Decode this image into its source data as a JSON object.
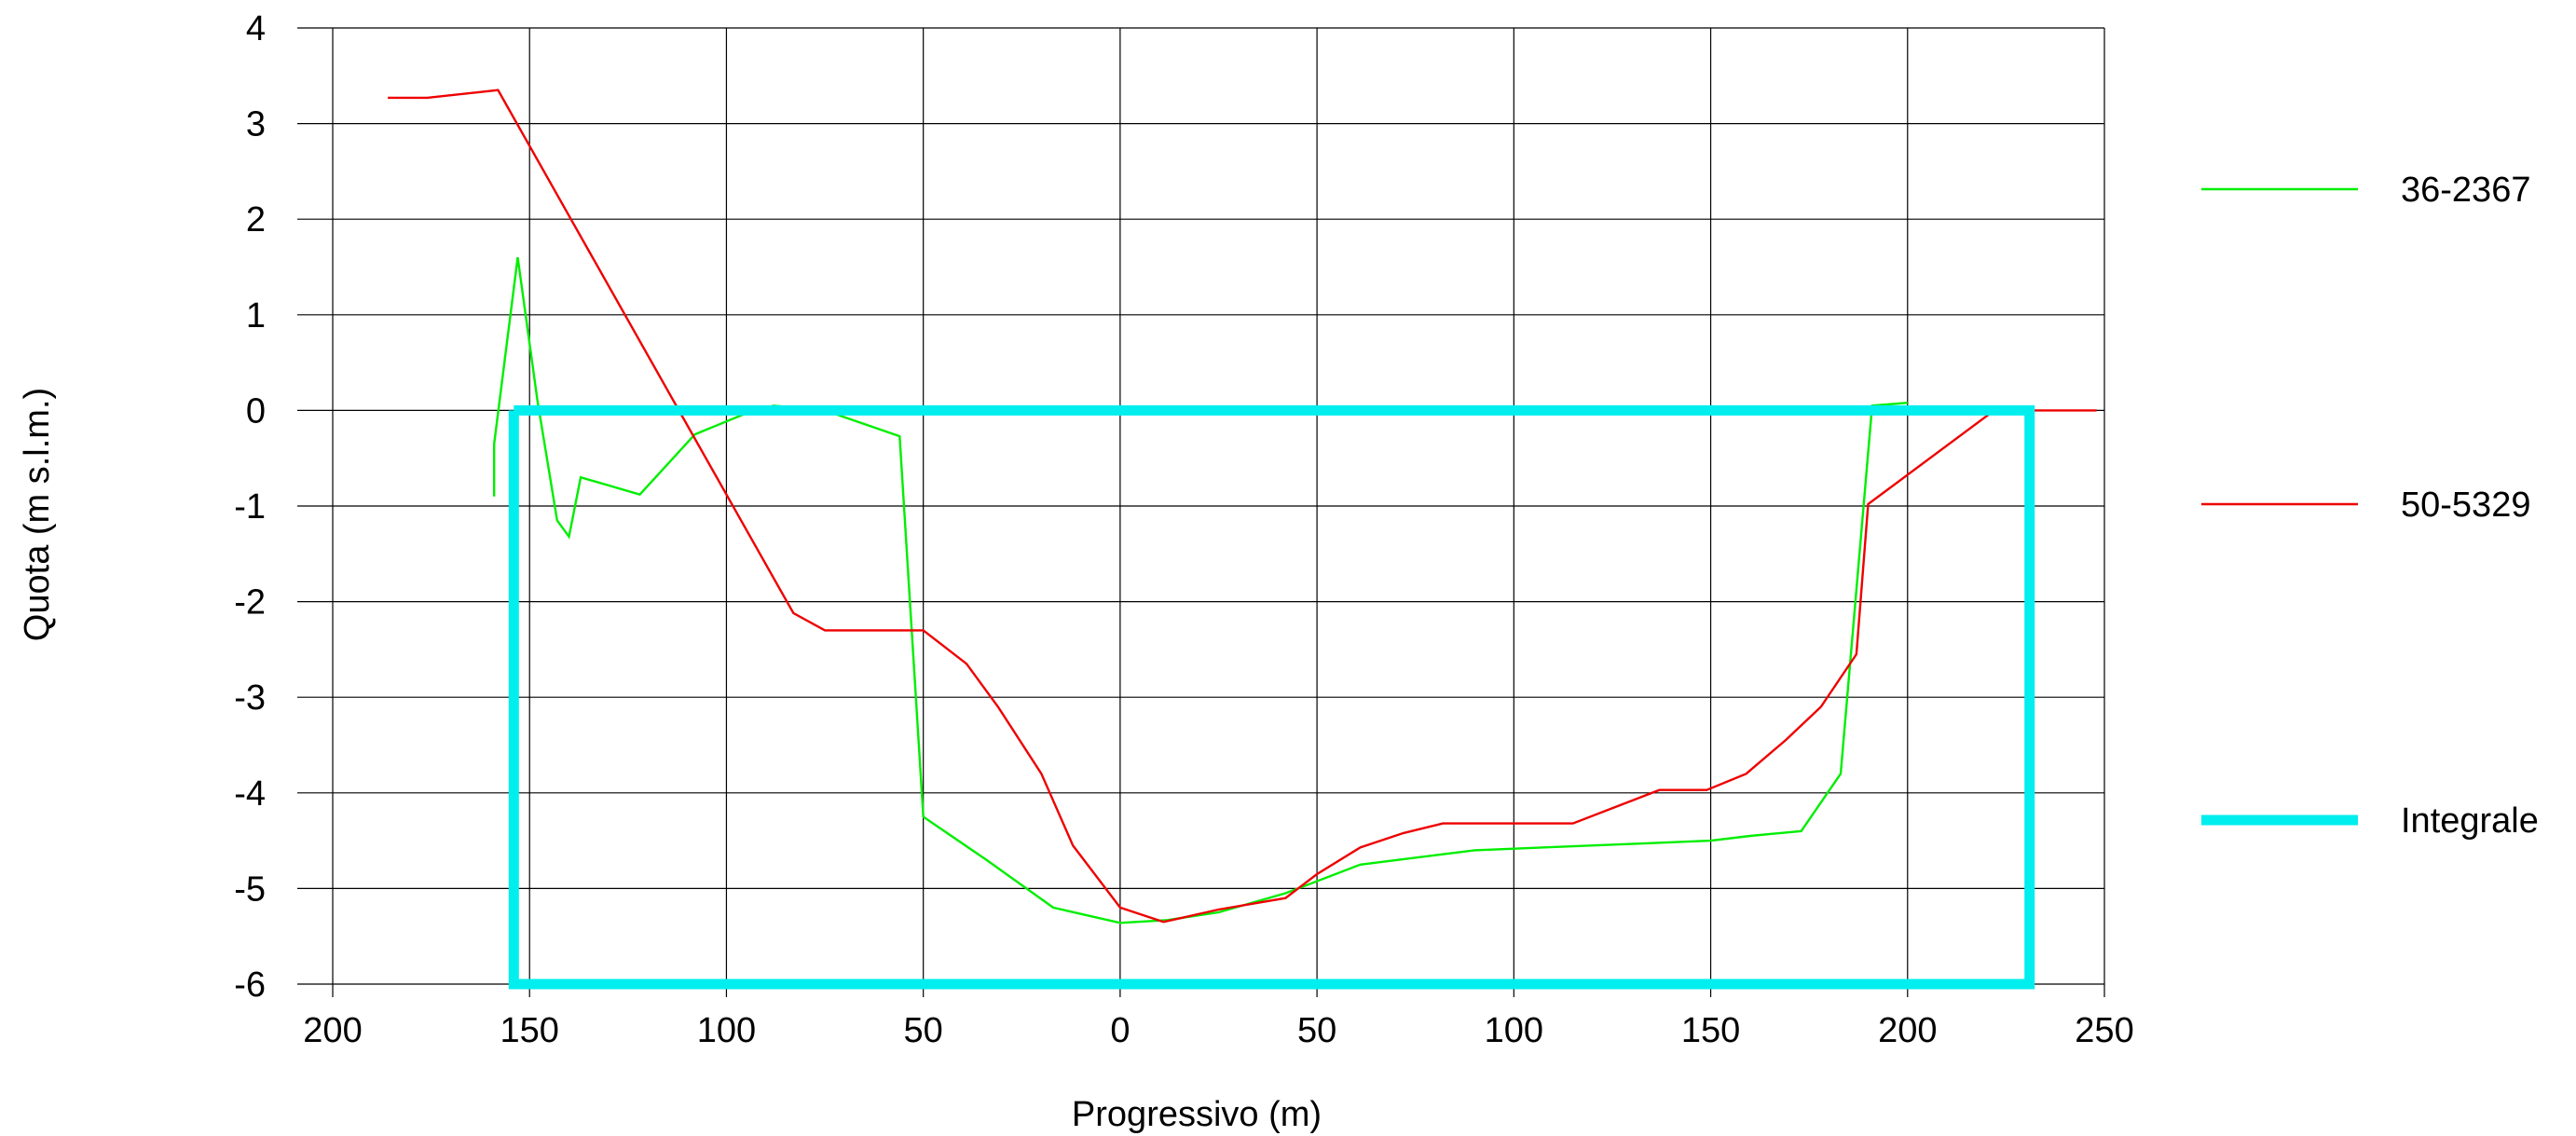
{
  "colors": {
    "background": "#ffffff",
    "grid": "#000000"
  },
  "chart_data": {
    "type": "line",
    "title": "",
    "xlabel": "Progressivo (m)",
    "ylabel": "Quota (m s.l.m.)",
    "xlim": [
      -200,
      250
    ],
    "ylim": [
      -6,
      4
    ],
    "x_ticks": [
      -200,
      -150,
      -100,
      -50,
      0,
      50,
      100,
      150,
      200,
      250
    ],
    "x_tick_labels": [
      "200",
      "150",
      "100",
      "50",
      "0",
      "50",
      "100",
      "150",
      "200",
      "250"
    ],
    "y_ticks": [
      4,
      3,
      2,
      1,
      0,
      -1,
      -2,
      -3,
      -4,
      -5,
      -6
    ],
    "y_tick_labels": [
      "4",
      "3",
      "2",
      "1",
      "0",
      "-1",
      "-2",
      "-3",
      "-4",
      "-5",
      "-6"
    ],
    "grid": true,
    "legend_position": "right",
    "series": [
      {
        "name": "36-2367",
        "color": "#00ee00",
        "style": "thin",
        "points": [
          [
            -159,
            -0.9
          ],
          [
            -159,
            -0.35
          ],
          [
            -153,
            1.6
          ],
          [
            -148,
            0.1
          ],
          [
            -143,
            -1.15
          ],
          [
            -140,
            -1.32
          ],
          [
            -137,
            -0.7
          ],
          [
            -122,
            -0.88
          ],
          [
            -108,
            -0.25
          ],
          [
            -95,
            -0.03
          ],
          [
            -88,
            0.05
          ],
          [
            -75,
            0
          ],
          [
            -56,
            -0.27
          ],
          [
            -50,
            -4.25
          ],
          [
            -34,
            -4.7
          ],
          [
            -17,
            -5.2
          ],
          [
            0,
            -5.36
          ],
          [
            12,
            -5.33
          ],
          [
            25,
            -5.25
          ],
          [
            42,
            -5.05
          ],
          [
            61,
            -4.75
          ],
          [
            90,
            -4.6
          ],
          [
            150,
            -4.5
          ],
          [
            160,
            -4.45
          ],
          [
            173,
            -4.4
          ],
          [
            183,
            -3.8
          ],
          [
            191,
            0.05
          ],
          [
            200,
            0.08
          ]
        ]
      },
      {
        "name": "50-5329",
        "color": "#ee0000",
        "style": "thin",
        "points": [
          [
            -186,
            3.27
          ],
          [
            -176,
            3.27
          ],
          [
            -158,
            3.35
          ],
          [
            -83,
            -2.12
          ],
          [
            -75,
            -2.3
          ],
          [
            -50,
            -2.3
          ],
          [
            -39,
            -2.65
          ],
          [
            -31,
            -3.1
          ],
          [
            -20,
            -3.8
          ],
          [
            -12,
            -4.55
          ],
          [
            0,
            -5.2
          ],
          [
            11,
            -5.35
          ],
          [
            25,
            -5.22
          ],
          [
            42,
            -5.1
          ],
          [
            50,
            -4.85
          ],
          [
            61,
            -4.57
          ],
          [
            72,
            -4.42
          ],
          [
            82,
            -4.32
          ],
          [
            115,
            -4.32
          ],
          [
            137,
            -3.97
          ],
          [
            149,
            -3.97
          ],
          [
            159,
            -3.8
          ],
          [
            169,
            -3.45
          ],
          [
            178,
            -3.1
          ],
          [
            187,
            -2.55
          ],
          [
            190,
            -0.98
          ],
          [
            222,
            0
          ],
          [
            248,
            0
          ]
        ]
      },
      {
        "name": "Integrale",
        "color": "#00eeee",
        "style": "thick",
        "points": [
          [
            -154,
            0
          ],
          [
            231,
            0
          ],
          [
            231,
            -6
          ],
          [
            -154,
            -6
          ],
          [
            -154,
            0
          ]
        ]
      }
    ]
  }
}
